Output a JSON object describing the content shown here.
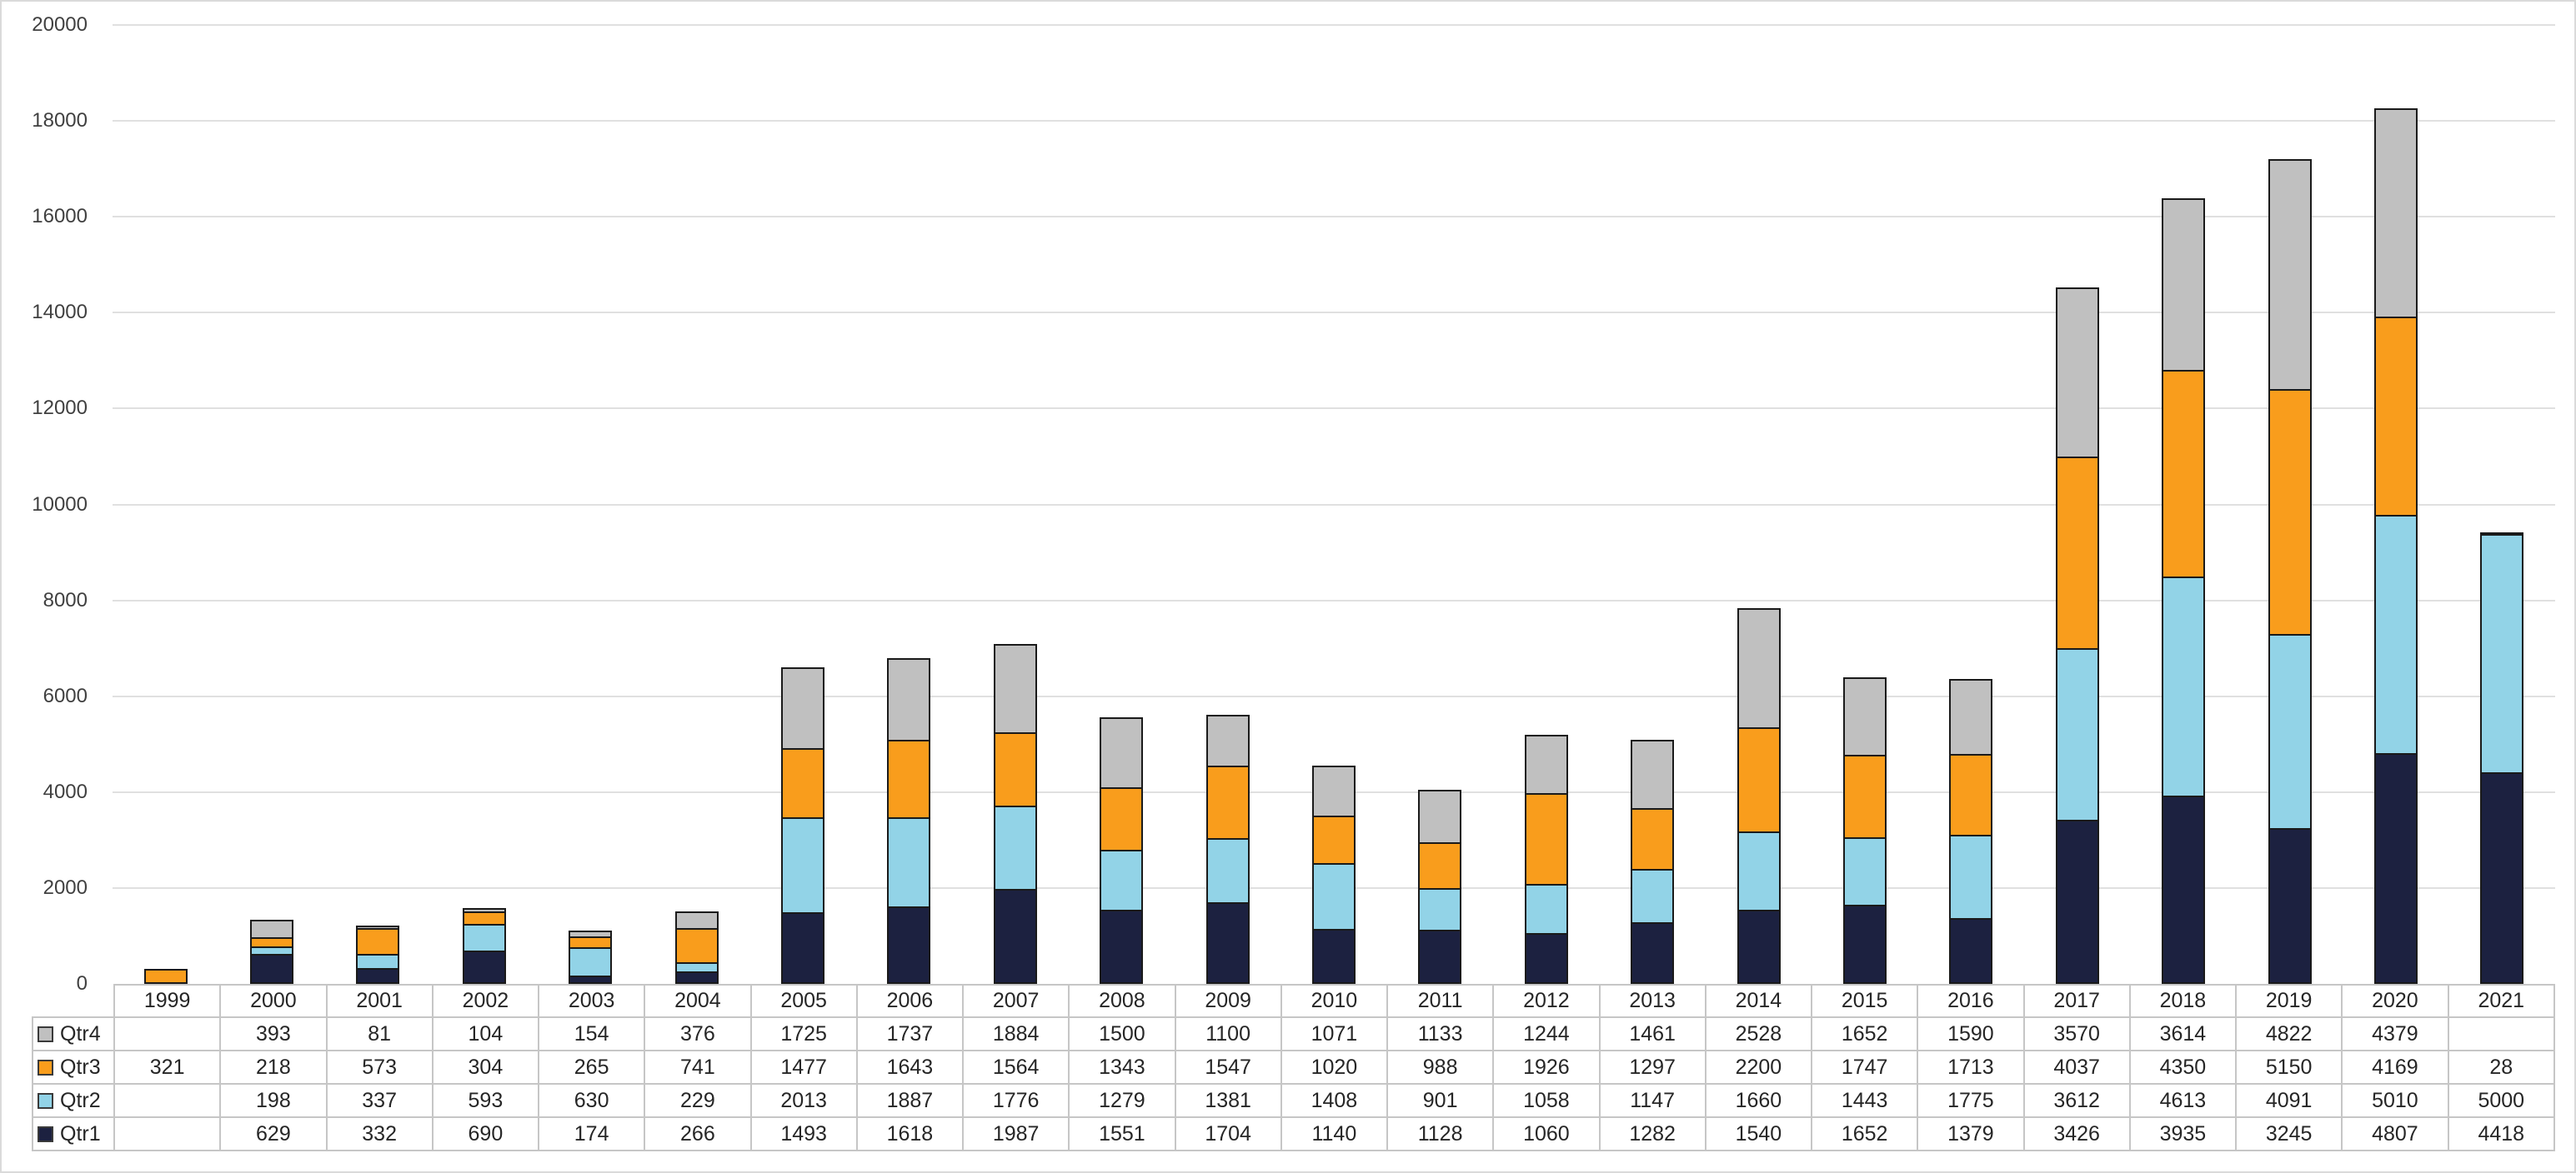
{
  "chart_data": {
    "type": "bar",
    "stacked": true,
    "categories": [
      "1999",
      "2000",
      "2001",
      "2002",
      "2003",
      "2004",
      "2005",
      "2006",
      "2007",
      "2008",
      "2009",
      "2010",
      "2011",
      "2012",
      "2013",
      "2014",
      "2015",
      "2016",
      "2017",
      "2018",
      "2019",
      "2020",
      "2021"
    ],
    "series": [
      {
        "name": "Qtr1",
        "color": "#1C2140",
        "values": [
          null,
          629,
          332,
          690,
          174,
          266,
          1493,
          1618,
          1987,
          1551,
          1704,
          1140,
          1128,
          1060,
          1282,
          1540,
          1652,
          1379,
          3426,
          3935,
          3245,
          4807,
          4418
        ]
      },
      {
        "name": "Qtr2",
        "color": "#92D3E7",
        "values": [
          null,
          198,
          337,
          593,
          630,
          229,
          2013,
          1887,
          1776,
          1279,
          1381,
          1408,
          901,
          1058,
          1147,
          1660,
          1443,
          1775,
          3612,
          4613,
          4091,
          5010,
          5000
        ]
      },
      {
        "name": "Qtr3",
        "color": "#F99D1C",
        "values": [
          321,
          218,
          573,
          304,
          265,
          741,
          1477,
          1643,
          1564,
          1343,
          1547,
          1020,
          988,
          1926,
          1297,
          2200,
          1747,
          1713,
          4037,
          4350,
          5150,
          4169,
          28
        ]
      },
      {
        "name": "Qtr4",
        "color": "#C0C0C0",
        "values": [
          null,
          393,
          81,
          104,
          154,
          376,
          1725,
          1737,
          1884,
          1500,
          1100,
          1071,
          1133,
          1244,
          1461,
          2528,
          1652,
          1590,
          3570,
          3614,
          4822,
          4379,
          null
        ]
      }
    ],
    "stack_order_bottom_to_top": [
      "Qtr1",
      "Qtr2",
      "Qtr3",
      "Qtr4"
    ],
    "table_row_order_top_to_bottom": [
      "Qtr4",
      "Qtr3",
      "Qtr2",
      "Qtr1"
    ],
    "xlabel": "",
    "ylabel": "",
    "ylim": [
      0,
      20000
    ],
    "ytick_step": 2000,
    "y_tick_labels": [
      "0",
      "2000",
      "4000",
      "6000",
      "8000",
      "10000",
      "12000",
      "14000",
      "16000",
      "18000",
      "20000"
    ],
    "grid": true,
    "legend_position": "data-table-left",
    "styles": {
      "bar_border": "#1A1A1A",
      "gridline": "#E0E0E0",
      "table_border": "#C6C6C6",
      "axis_text": "#404040",
      "table_text": "#262626",
      "background": "#FFFFFF",
      "canvas_border": "#DADADA"
    }
  }
}
